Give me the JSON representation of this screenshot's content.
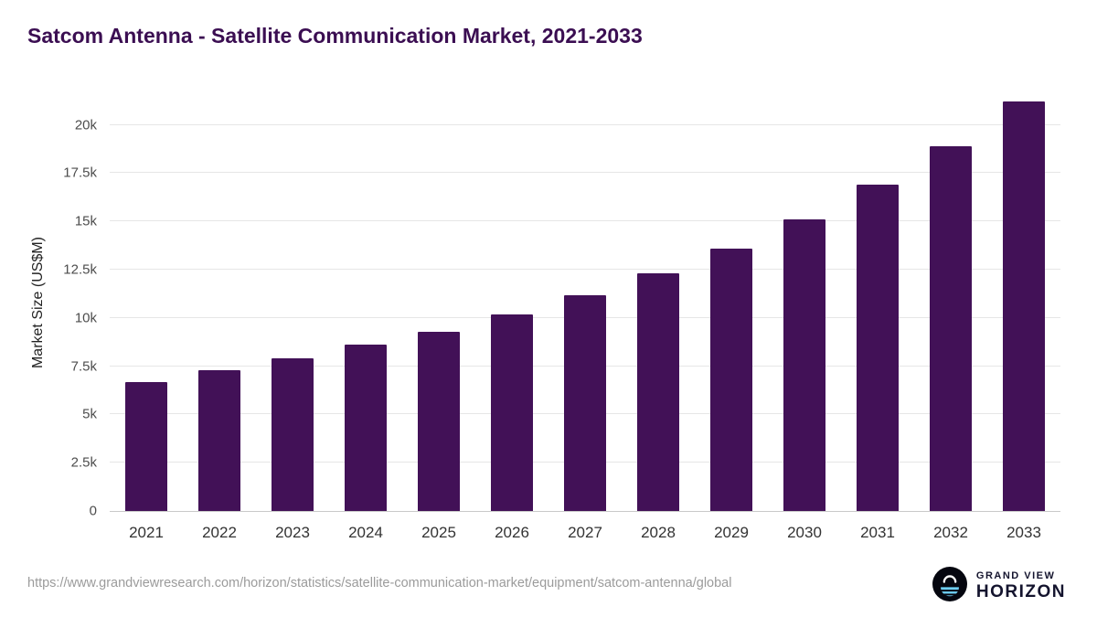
{
  "title": "Satcom Antenna - Satellite Communication Market, 2021-2033",
  "chart_data": {
    "type": "bar",
    "title": "Satcom Antenna - Satellite Communication Market, 2021-2033",
    "categories": [
      "2021",
      "2022",
      "2023",
      "2024",
      "2025",
      "2026",
      "2027",
      "2028",
      "2029",
      "2030",
      "2031",
      "2032",
      "2033"
    ],
    "values": [
      6700,
      7300,
      7900,
      8600,
      9300,
      10200,
      11200,
      12300,
      13600,
      15100,
      16900,
      18900,
      21200
    ],
    "xlabel": "",
    "ylabel": "Market Size (US$M)",
    "ylim": [
      0,
      21500
    ],
    "yticks": [
      0,
      2500,
      5000,
      7500,
      10000,
      12500,
      15000,
      17500,
      20000
    ],
    "ytick_labels": [
      "0",
      "2.5k",
      "5k",
      "7.5k",
      "10k",
      "12.5k",
      "15k",
      "17.5k",
      "20k"
    ],
    "grid": true,
    "legend_position": "none",
    "bar_color": "#421157"
  },
  "colors": {
    "title": "#3b0e52",
    "bar": "#421157",
    "grid": "#e6e6e6",
    "axis_text": "#4d4d4d",
    "logo_accent": "#6ecff6"
  },
  "footer": {
    "source_url": "https://www.grandviewresearch.com/horizon/statistics/satellite-communication-market/equipment/satcom-antenna/global",
    "logo_line1": "GRAND VIEW",
    "logo_line2": "HORIZON"
  }
}
